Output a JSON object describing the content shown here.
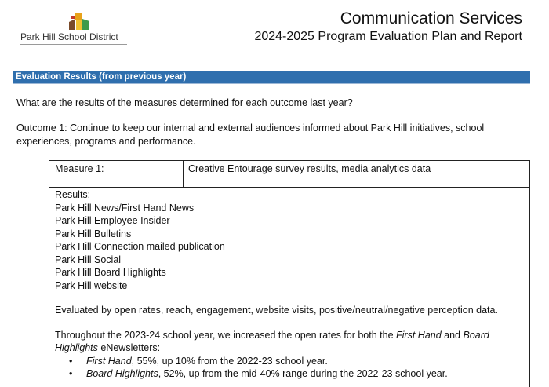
{
  "header": {
    "district": "Park Hill School District",
    "title": "Communication Services",
    "subtitle": "2024-2025 Program Evaluation Plan and Report"
  },
  "section": {
    "heading": "Evaluation Results (from previous year)",
    "question": "What are the results of the measures determined for each outcome last year?",
    "outcome": "Outcome 1: Continue to keep our internal and external audiences informed about Park Hill initiatives, school experiences, programs and performance."
  },
  "measure": {
    "label": "Measure 1:",
    "value": "Creative Entourage survey results, media analytics data",
    "results_heading": "Results:",
    "results": [
      "Park Hill News/First Hand News",
      "Park Hill Employee Insider",
      "Park Hill Bulletins",
      "Park Hill Connection mailed publication",
      "Park Hill Social",
      "Park Hill Board Highlights",
      "Park Hill website"
    ],
    "evaluated_by": "Evaluated by open rates, reach, engagement, website visits, positive/neutral/negative perception data.",
    "throughout": {
      "pre": "Throughout the 2023-24 school year, we increased the open rates for both the ",
      "em1": "First Hand",
      "mid": " and ",
      "em2": "Board Highlights",
      "post": " eNewsletters:"
    },
    "bullets": [
      {
        "em": "First Hand",
        "text": ", 55%, up 10% from the 2022-23 school year."
      },
      {
        "em": "Board Highlights",
        "text": ", 52%, up from the mid-40% range during the 2022-23 school year."
      }
    ]
  }
}
